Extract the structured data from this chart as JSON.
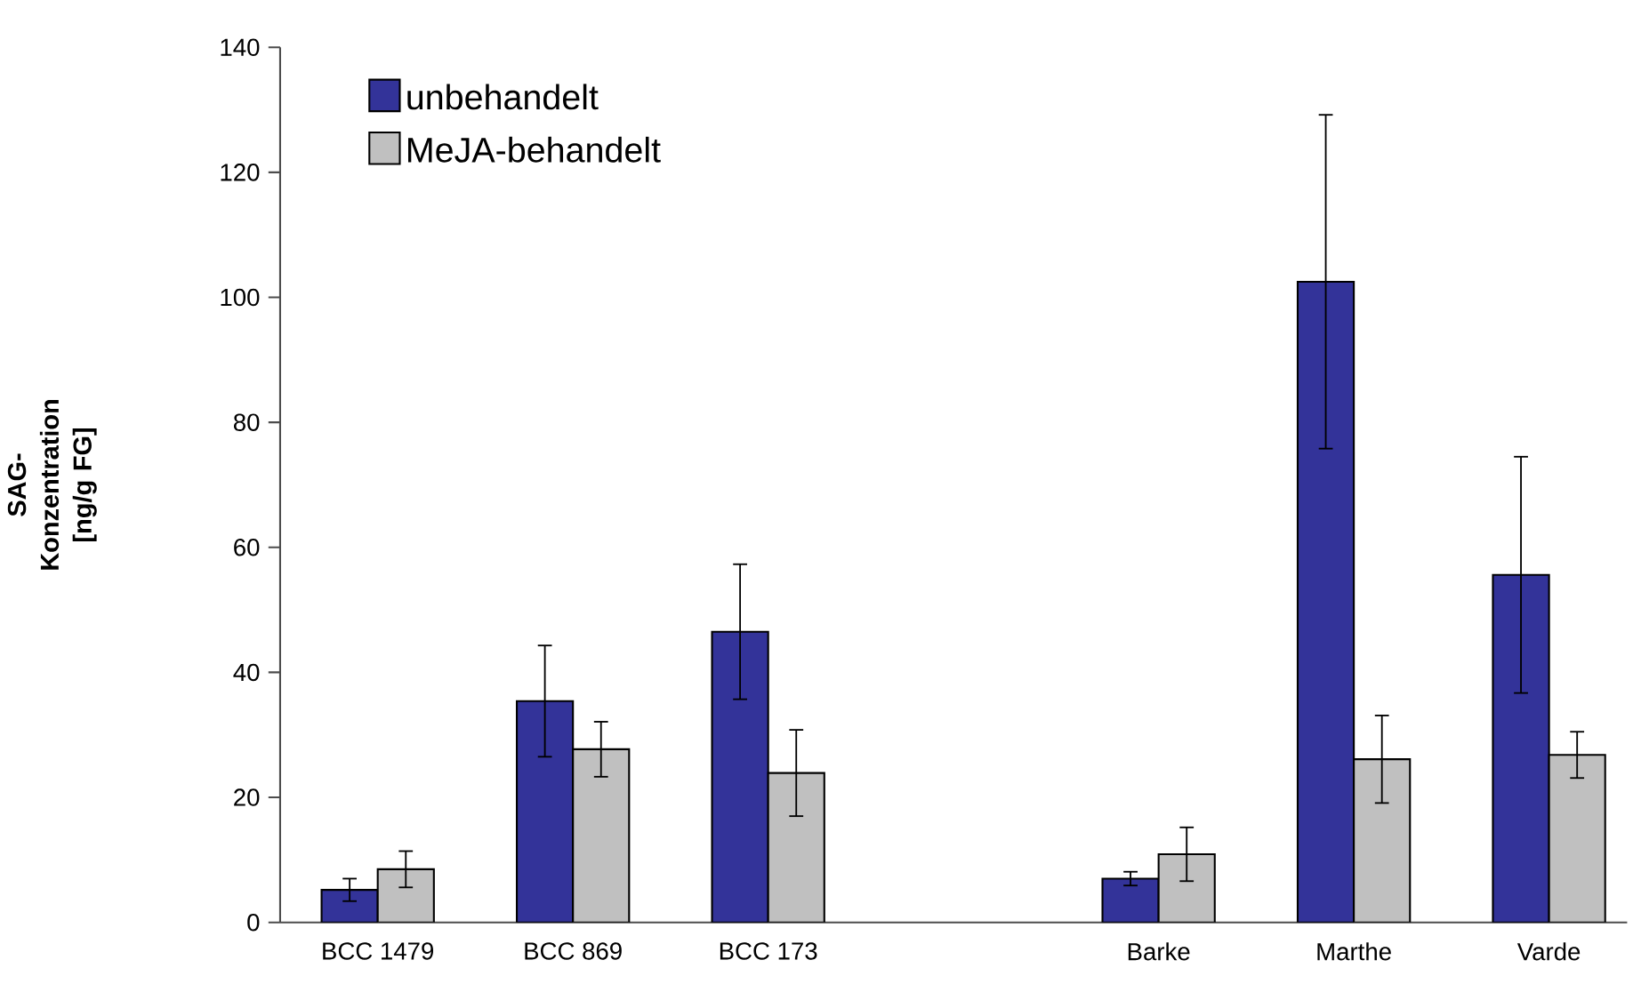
{
  "chart_data": {
    "type": "bar",
    "ylabel": "SAG-Konzentration [ng/g FG]",
    "categories": [
      "BCC 1479",
      "BCC 869",
      "BCC 173",
      null,
      "Barke",
      "Marthe",
      "Varde"
    ],
    "series": [
      {
        "name": "unbehandelt",
        "color": "#333399",
        "values": [
          5.2,
          35.4,
          46.5,
          null,
          7.0,
          102.5,
          55.6
        ],
        "errors": [
          1.8,
          8.9,
          10.8,
          null,
          1.1,
          26.7,
          18.9
        ]
      },
      {
        "name": "MeJA-behandelt",
        "color": "#c0c0c0",
        "values": [
          8.5,
          27.7,
          23.9,
          null,
          10.9,
          26.1,
          26.8
        ],
        "errors": [
          2.9,
          4.4,
          6.9,
          null,
          4.3,
          7.0,
          3.7
        ]
      }
    ],
    "ylim": [
      0,
      140
    ],
    "yticks": [
      0,
      20,
      40,
      60,
      80,
      100,
      120,
      140
    ],
    "legend": "top left",
    "grid": false
  }
}
